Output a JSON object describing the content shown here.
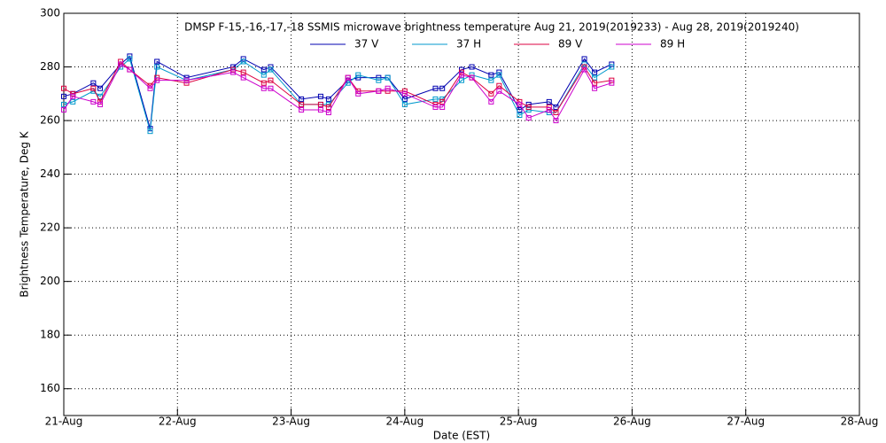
{
  "chart_data": {
    "type": "line",
    "title": "DMSP F-15,-16,-17,-18 SSMIS microwave brightness temperature Aug 21, 2019(2019233) - Aug 28, 2019(2019240)",
    "x_label": "Date (EST)",
    "y_label": "Brightness Temperature, Deg K",
    "x": [
      21.0,
      21.08,
      21.26,
      21.32,
      21.5,
      21.58,
      21.76,
      21.82,
      22.08,
      22.49,
      22.58,
      22.76,
      22.82,
      23.09,
      23.26,
      23.33,
      23.5,
      23.59,
      23.77,
      23.85,
      24.0,
      24.27,
      24.33,
      24.5,
      24.59,
      24.76,
      24.83,
      25.01,
      25.09,
      25.27,
      25.33,
      25.58,
      25.67,
      25.82
    ],
    "series": [
      {
        "name": "37 V",
        "color": "#0000b0",
        "values": [
          269,
          270,
          274,
          272,
          281,
          284,
          257,
          282,
          276,
          280,
          283,
          279,
          280,
          268,
          269,
          268,
          275,
          276,
          276,
          276,
          268,
          272,
          272,
          279,
          280,
          277,
          278,
          264,
          266,
          267,
          265,
          283,
          278,
          281
        ]
      },
      {
        "name": "37 H",
        "color": "#0099cc",
        "values": [
          266,
          267,
          271,
          269,
          280,
          283,
          256,
          280,
          275,
          279,
          282,
          277,
          279,
          266,
          266,
          266,
          274,
          277,
          275,
          276,
          266,
          268,
          268,
          275,
          277,
          275,
          277,
          262,
          264,
          263,
          263,
          281,
          276,
          280
        ]
      },
      {
        "name": "89 V",
        "color": "#dd0040",
        "values": [
          272,
          270,
          272,
          267,
          282,
          279,
          273,
          276,
          274,
          279,
          278,
          274,
          275,
          266,
          266,
          265,
          276,
          271,
          271,
          271,
          271,
          266,
          267,
          278,
          276,
          270,
          273,
          267,
          265,
          265,
          263,
          280,
          274,
          275
        ]
      },
      {
        "name": "89 H",
        "color": "#cc00cc",
        "values": [
          264,
          269,
          267,
          266,
          281,
          279,
          272,
          275,
          275,
          278,
          276,
          272,
          272,
          264,
          264,
          263,
          276,
          270,
          271,
          272,
          270,
          265,
          265,
          277,
          276,
          267,
          271,
          266,
          261,
          264,
          260,
          279,
          272,
          274
        ]
      }
    ],
    "xlim": [
      21,
      28
    ],
    "xticks": [
      {
        "value": 21,
        "label": "21-Aug"
      },
      {
        "value": 22,
        "label": "22-Aug"
      },
      {
        "value": 23,
        "label": "23-Aug"
      },
      {
        "value": 24,
        "label": "24-Aug"
      },
      {
        "value": 25,
        "label": "25-Aug"
      },
      {
        "value": 26,
        "label": "26-Aug"
      },
      {
        "value": 27,
        "label": "27-Aug"
      },
      {
        "value": 28,
        "label": "28-Aug"
      }
    ],
    "ylim": [
      150,
      300
    ],
    "yticks": [
      160,
      180,
      200,
      220,
      240,
      260,
      280,
      300
    ],
    "grid": true
  }
}
